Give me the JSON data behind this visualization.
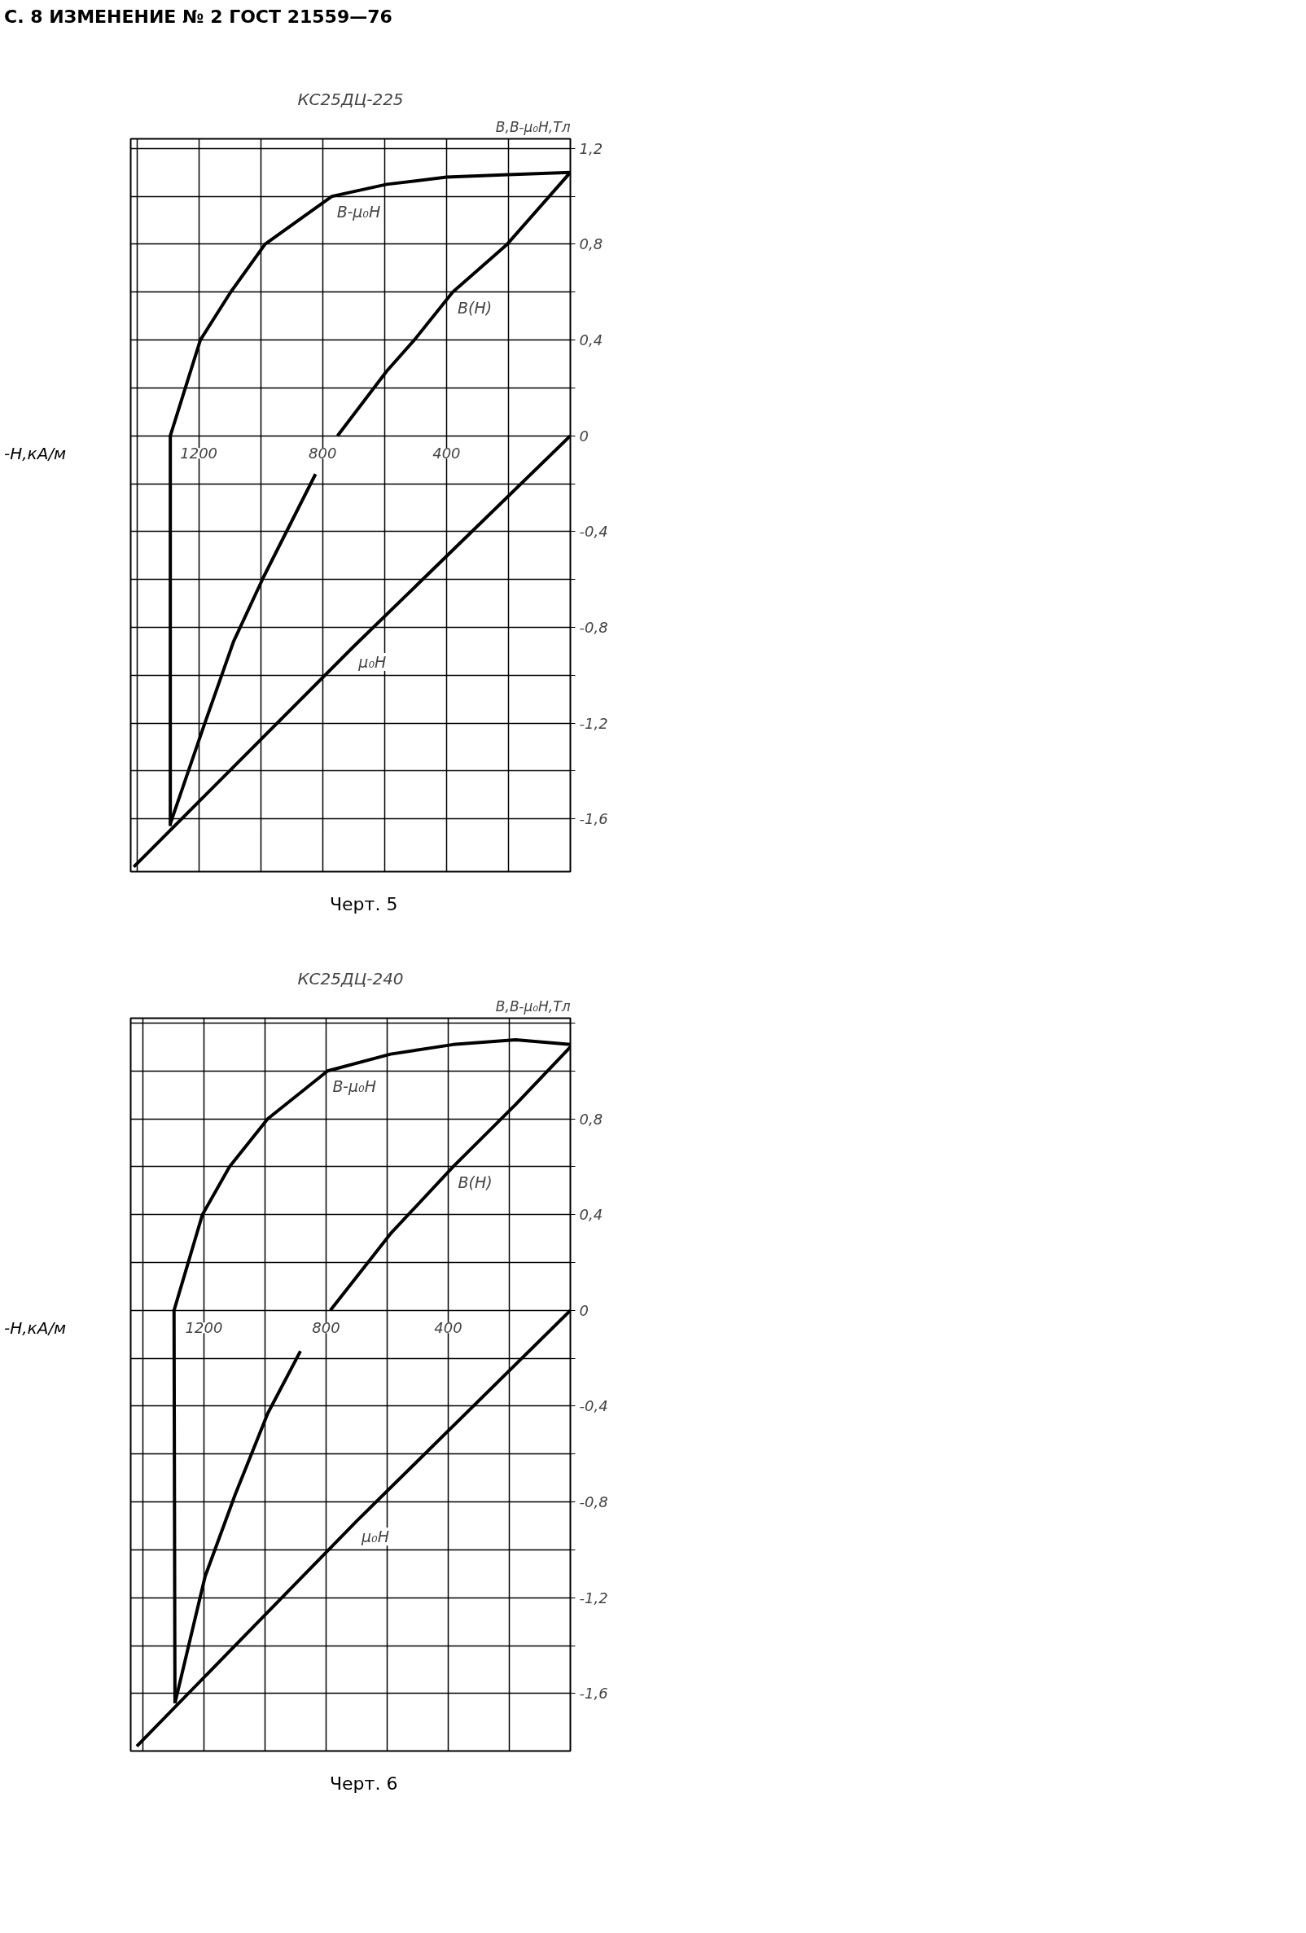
{
  "chart_data": [
    {
      "type": "other",
      "title": "С. 8 ИЗМЕНЕНИЕ № 2 ГОСТ 21559—76"
    },
    {
      "type": "line",
      "title": "КС25ДЦ-225",
      "xlabel": "-H,кА/м",
      "ylabel": "B,B-μ₀H,Тл",
      "xlim": [
        1420,
        0
      ],
      "ylim": [
        -1.82,
        1.24
      ],
      "grid": true,
      "xticks": [
        {
          "value": 1400,
          "label": null
        },
        {
          "value": 1200,
          "label": "1200"
        },
        {
          "value": 1000,
          "label": null
        },
        {
          "value": 800,
          "label": "800"
        },
        {
          "value": 600,
          "label": null
        },
        {
          "value": 400,
          "label": "400"
        },
        {
          "value": 200,
          "label": null
        }
      ],
      "yticks": [
        {
          "value": 1.2,
          "label": "1,2"
        },
        {
          "value": 1.0,
          "label": null
        },
        {
          "value": 0.8,
          "label": "0,8"
        },
        {
          "value": 0.6,
          "label": null
        },
        {
          "value": 0.4,
          "label": "0,4"
        },
        {
          "value": 0.2,
          "label": null
        },
        0,
        {
          "value": -0.2,
          "label": null
        },
        {
          "value": -0.4,
          "label": "-0,4"
        },
        {
          "value": -0.6,
          "label": null
        },
        {
          "value": -0.8,
          "label": "-0,8"
        },
        {
          "value": -1.0,
          "label": null
        },
        {
          "value": -1.2,
          "label": "-1,2"
        },
        {
          "value": -1.4,
          "label": null
        },
        {
          "value": -1.6,
          "label": "-1,6"
        }
      ],
      "series": [
        {
          "name": "B-μ₀H",
          "color": "#000000",
          "x": [
            1292,
            1292,
            1195,
            1097,
            986,
            770,
            593,
            400,
            200,
            0
          ],
          "values": [
            -1.63,
            0,
            0.4,
            0.6,
            0.8,
            1.0,
            1.05,
            1.08,
            1.09,
            1.1
          ]
        },
        {
          "name": "B(H)",
          "color": "#000000",
          "x": [
            752,
            593,
            504,
            380,
            204,
            0
          ],
          "values": [
            0,
            0.27,
            0.4,
            0.6,
            0.8,
            1.1
          ]
        },
        {
          "name": "μ₀H",
          "color": "#000000",
          "x": [
            0,
            700,
            1410
          ],
          "values": [
            0,
            -0.88,
            -1.8
          ]
        },
        {
          "color": "#000000",
          "x": [
            1292,
            1186,
            1088,
            991,
            823
          ],
          "values": [
            -1.62,
            -1.22,
            -0.86,
            -0.59,
            -0.16
          ]
        }
      ],
      "annotations": [
        "Черт. 5"
      ]
    },
    {
      "type": "line",
      "title": "КС25ДЦ-240",
      "xlabel": "-H,кА/м",
      "ylabel": "B,B-μ₀H,Тл",
      "xlim": [
        1440,
        0
      ],
      "ylim": [
        -1.84,
        1.22
      ],
      "grid": true,
      "xticks": [
        {
          "value": 1400,
          "label": null
        },
        {
          "value": 1200,
          "label": "1200"
        },
        {
          "value": 1000,
          "label": null
        },
        {
          "value": 800,
          "label": "800"
        },
        {
          "value": 600,
          "label": null
        },
        {
          "value": 400,
          "label": "400"
        },
        {
          "value": 200,
          "label": null
        }
      ],
      "yticks": [
        {
          "value": 1.2,
          "label": null
        },
        {
          "value": 1.0,
          "label": null
        },
        {
          "value": 0.8,
          "label": "0,8"
        },
        {
          "value": 0.6,
          "label": null
        },
        {
          "value": 0.4,
          "label": "0,4"
        },
        {
          "value": 0.2,
          "label": null
        },
        0,
        {
          "value": -0.2,
          "label": null
        },
        {
          "value": -0.4,
          "label": "-0,4"
        },
        {
          "value": -0.6,
          "label": null
        },
        {
          "value": -0.8,
          "label": "-0,8"
        },
        {
          "value": -1.0,
          "label": null
        },
        {
          "value": -1.2,
          "label": "-1,2"
        },
        {
          "value": -1.4,
          "label": null
        },
        {
          "value": -1.6,
          "label": "-1,6"
        }
      ],
      "series": [
        {
          "name": "B-μ₀H",
          "color": "#000000",
          "x": [
            1295,
            1298,
            1205,
            1116,
            991,
            795,
            589,
            384,
            179,
            0
          ],
          "values": [
            -1.64,
            0,
            0.4,
            0.6,
            0.8,
            1.0,
            1.07,
            1.11,
            1.13,
            1.11
          ]
        },
        {
          "name": "B(H)",
          "color": "#000000",
          "x": [
            786,
            589,
            384,
            179,
            0
          ],
          "values": [
            0,
            0.32,
            0.6,
            0.86,
            1.1
          ]
        },
        {
          "name": "μ₀H",
          "color": "#000000",
          "x": [
            0,
            700,
            1420
          ],
          "values": [
            0,
            -0.88,
            -1.82
          ]
        },
        {
          "color": "#000000",
          "x": [
            1295,
            1196,
            1098,
            991,
            884
          ],
          "values": [
            -1.64,
            -1.11,
            -0.77,
            -0.43,
            -0.17
          ]
        }
      ],
      "annotations": [
        "Черт. 6"
      ]
    }
  ]
}
